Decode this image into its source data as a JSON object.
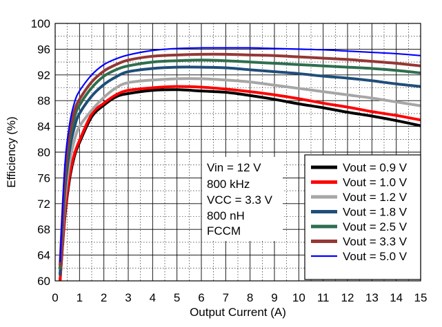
{
  "chart_data": {
    "type": "line",
    "title": "",
    "xlabel": "Output Current (A)",
    "ylabel": "Efficiency (%)",
    "xlim": [
      0,
      15
    ],
    "ylim": [
      60,
      100
    ],
    "x_ticks": [
      0,
      1,
      2,
      3,
      4,
      5,
      6,
      7,
      8,
      9,
      10,
      11,
      12,
      13,
      14,
      15
    ],
    "y_ticks": [
      60,
      64,
      68,
      72,
      76,
      80,
      84,
      88,
      92,
      96,
      100
    ],
    "grid": true,
    "annotations": [
      "Vin = 12 V",
      "800 kHz",
      "VCC = 3.3 V",
      "800 nH",
      "FCCM"
    ],
    "legend_position": "bottom-right",
    "series": [
      {
        "name": "Vout = 0.9 V",
        "color": "#000000",
        "x": [
          0.2,
          0.4,
          0.6,
          0.8,
          1.0,
          1.5,
          2.0,
          2.5,
          3,
          4,
          5,
          6,
          7,
          8,
          9,
          10,
          11,
          12,
          13,
          14,
          15
        ],
        "y": [
          60,
          70,
          76,
          79.5,
          81.5,
          85.5,
          87.3,
          88.6,
          89.1,
          89.6,
          89.7,
          89.5,
          89.3,
          88.8,
          88.2,
          87.5,
          86.9,
          86.2,
          85.6,
          84.9,
          84.1
        ]
      },
      {
        "name": "Vout = 1.0 V",
        "color": "#ff0000",
        "x": [
          0.2,
          0.4,
          0.6,
          0.8,
          1.0,
          1.5,
          2.0,
          2.5,
          3,
          4,
          5,
          6,
          7,
          8,
          9,
          10,
          11,
          12,
          13,
          14,
          15
        ],
        "y": [
          60,
          70.5,
          76.5,
          79.8,
          81.8,
          85.9,
          87.6,
          88.9,
          89.6,
          90.0,
          90.2,
          90.1,
          89.8,
          89.4,
          88.9,
          88.3,
          87.6,
          87.0,
          86.3,
          85.7,
          85.0
        ]
      },
      {
        "name": "Vout = 1.2 V",
        "color": "#a6a6a6",
        "x": [
          0.2,
          0.4,
          0.6,
          0.8,
          1.0,
          1.5,
          2.0,
          2.5,
          3,
          4,
          5,
          6,
          7,
          8,
          9,
          10,
          11,
          12,
          13,
          14,
          15
        ],
        "y": [
          61,
          72.5,
          78.5,
          82,
          84,
          86.5,
          88.5,
          90.0,
          90.8,
          91.2,
          91.4,
          91.4,
          91.2,
          90.9,
          90.4,
          89.9,
          89.4,
          88.9,
          88.4,
          87.8,
          87.2
        ]
      },
      {
        "name": "Vout = 1.8 V",
        "color": "#1f4e79",
        "x": [
          0.2,
          0.4,
          0.6,
          0.8,
          1.0,
          1.5,
          2.0,
          2.5,
          3,
          4,
          5,
          6,
          7,
          8,
          9,
          10,
          11,
          12,
          13,
          14,
          15
        ],
        "y": [
          61,
          74,
          80.5,
          84,
          86,
          88.7,
          90.5,
          91.7,
          92.5,
          93.0,
          93.2,
          93.2,
          93.1,
          92.8,
          92.5,
          92.2,
          91.8,
          91.5,
          91.1,
          90.6,
          90.2
        ]
      },
      {
        "name": "Vout = 2.5 V",
        "color": "#2e6e4e",
        "x": [
          0.2,
          0.4,
          0.6,
          0.8,
          1.0,
          1.5,
          2.0,
          2.5,
          3,
          4,
          5,
          6,
          7,
          8,
          9,
          10,
          11,
          12,
          13,
          14,
          15
        ],
        "y": [
          62,
          75.5,
          82,
          85.5,
          87.3,
          90,
          91.8,
          92.8,
          93.4,
          94.0,
          94.2,
          94.3,
          94.2,
          94.0,
          93.8,
          93.6,
          93.4,
          93.2,
          93.0,
          92.7,
          92.3
        ]
      },
      {
        "name": "Vout = 3.3 V",
        "color": "#953735",
        "x": [
          0.2,
          0.4,
          0.6,
          0.8,
          1.0,
          1.5,
          2.0,
          2.5,
          3,
          4,
          5,
          6,
          7,
          8,
          9,
          10,
          11,
          12,
          13,
          14,
          15
        ],
        "y": [
          62.5,
          76.5,
          83,
          86.5,
          88.2,
          90.9,
          92.6,
          93.6,
          94.3,
          94.9,
          95.1,
          95.2,
          95.2,
          95.1,
          95.0,
          94.8,
          94.6,
          94.4,
          94.1,
          93.8,
          93.4
        ]
      },
      {
        "name": "Vout = 5.0 V",
        "color": "#0000ff",
        "x": [
          0.2,
          0.4,
          0.6,
          0.8,
          1.0,
          1.5,
          2.0,
          2.5,
          3,
          4,
          5,
          6,
          7,
          8,
          9,
          10,
          11,
          12,
          13,
          14,
          15
        ],
        "y": [
          63,
          78,
          84.5,
          87.8,
          89.5,
          92,
          93.6,
          94.5,
          95.1,
          95.8,
          96.1,
          96.2,
          96.2,
          96.2,
          96.1,
          96.0,
          95.9,
          95.7,
          95.5,
          95.3,
          95.0
        ]
      }
    ]
  }
}
